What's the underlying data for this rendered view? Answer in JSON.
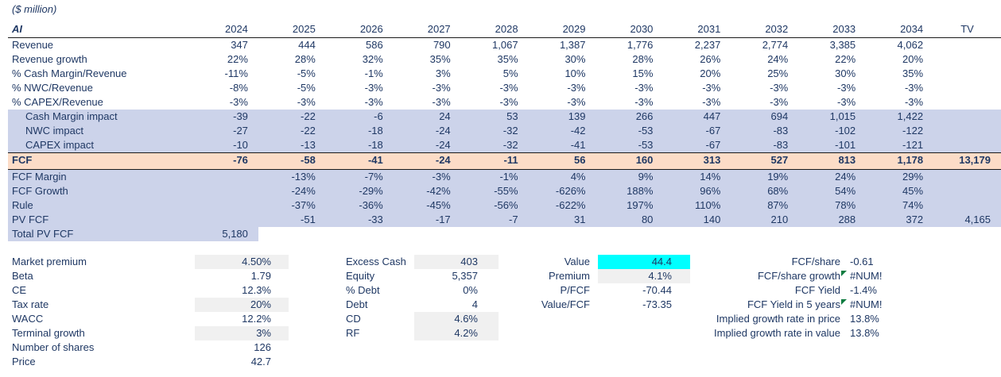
{
  "sheet": {
    "units_note": "($ million)",
    "company": "AI",
    "columns": [
      "2024",
      "2025",
      "2026",
      "2027",
      "2028",
      "2029",
      "2030",
      "2031",
      "2032",
      "2033",
      "2034",
      "TV"
    ],
    "rows": [
      {
        "label": "Revenue",
        "band": "none",
        "values": [
          "347",
          "444",
          "586",
          "790",
          "1,067",
          "1,387",
          "1,776",
          "2,237",
          "2,774",
          "3,385",
          "4,062",
          ""
        ]
      },
      {
        "label": "Revenue growth",
        "band": "none",
        "values": [
          "22%",
          "28%",
          "32%",
          "35%",
          "35%",
          "30%",
          "28%",
          "26%",
          "24%",
          "22%",
          "20%",
          ""
        ]
      },
      {
        "label": "% Cash Margin/Revenue",
        "band": "none",
        "values": [
          "-11%",
          "-5%",
          "-1%",
          "3%",
          "5%",
          "10%",
          "15%",
          "20%",
          "25%",
          "30%",
          "35%",
          ""
        ]
      },
      {
        "label": "% NWC/Revenue",
        "band": "none",
        "values": [
          "-8%",
          "-5%",
          "-3%",
          "-3%",
          "-3%",
          "-3%",
          "-3%",
          "-3%",
          "-3%",
          "-3%",
          "-3%",
          ""
        ]
      },
      {
        "label": "% CAPEX/Revenue",
        "band": "none",
        "values": [
          "-3%",
          "-3%",
          "-3%",
          "-3%",
          "-3%",
          "-3%",
          "-3%",
          "-3%",
          "-3%",
          "-3%",
          "-3%",
          ""
        ]
      },
      {
        "label": "Cash Margin impact",
        "band": "blue",
        "indent": true,
        "values": [
          "-39",
          "-22",
          "-6",
          "24",
          "53",
          "139",
          "266",
          "447",
          "694",
          "1,015",
          "1,422",
          ""
        ]
      },
      {
        "label": "NWC impact",
        "band": "blue",
        "indent": true,
        "values": [
          "-27",
          "-22",
          "-18",
          "-24",
          "-32",
          "-42",
          "-53",
          "-67",
          "-83",
          "-102",
          "-122",
          ""
        ]
      },
      {
        "label": "CAPEX impact",
        "band": "blue",
        "indent": true,
        "values": [
          "-10",
          "-13",
          "-18",
          "-24",
          "-32",
          "-41",
          "-53",
          "-67",
          "-83",
          "-101",
          "-121",
          ""
        ]
      },
      {
        "label": "FCF",
        "band": "orange",
        "bold": true,
        "values": [
          "-76",
          "-58",
          "-41",
          "-24",
          "-11",
          "56",
          "160",
          "313",
          "527",
          "813",
          "1,178",
          "13,179"
        ]
      },
      {
        "label": "FCF Margin",
        "band": "blue",
        "values": [
          "",
          "-13%",
          "-7%",
          "-3%",
          "-1%",
          "4%",
          "9%",
          "14%",
          "19%",
          "24%",
          "29%",
          ""
        ]
      },
      {
        "label": "FCF Growth",
        "band": "blue",
        "values": [
          "",
          "-24%",
          "-29%",
          "-42%",
          "-55%",
          "-626%",
          "188%",
          "96%",
          "68%",
          "54%",
          "45%",
          ""
        ]
      },
      {
        "label": "Rule",
        "band": "blue",
        "values": [
          "",
          "-37%",
          "-36%",
          "-45%",
          "-56%",
          "-622%",
          "197%",
          "110%",
          "87%",
          "78%",
          "74%",
          ""
        ]
      },
      {
        "label": "PV FCF",
        "band": "blue",
        "values": [
          "",
          "-51",
          "-33",
          "-17",
          "-7",
          "31",
          "80",
          "140",
          "210",
          "288",
          "372",
          "4,165"
        ]
      },
      {
        "label": "Total PV FCF",
        "band": "partial",
        "values": [
          "5,180",
          "",
          "",
          "",
          "",
          "",
          "",
          "",
          "",
          "",
          "",
          ""
        ]
      }
    ]
  },
  "assumptions": {
    "rows": [
      {
        "label": "Market premium",
        "value": "4.50%",
        "fill": "gray"
      },
      {
        "label": "Beta",
        "value": "1.79"
      },
      {
        "label": "CE",
        "value": "12.3%"
      },
      {
        "label": "Tax rate",
        "value": "20%",
        "fill": "gray"
      },
      {
        "label": "WACC",
        "value": "12.2%"
      },
      {
        "label": "Terminal growth",
        "value": "3%",
        "fill": "gray"
      },
      {
        "label": "Number of shares",
        "value": "126"
      },
      {
        "label": "Price",
        "value": "42.7"
      }
    ]
  },
  "capital_structure": {
    "rows": [
      {
        "label": "Excess Cash",
        "value": "403",
        "fill": "gray"
      },
      {
        "label": "Equity",
        "value": "5,357"
      },
      {
        "label": "% Debt",
        "value": "0%"
      },
      {
        "label": "Debt",
        "value": "4"
      },
      {
        "label": "CD",
        "value": "4.6%",
        "fill": "gray"
      },
      {
        "label": "RF",
        "value": "4.2%",
        "fill": "gray"
      }
    ]
  },
  "valuation": {
    "rows": [
      {
        "label": "Value",
        "value": "44.4",
        "fill": "cyan"
      },
      {
        "label": "Premium",
        "value": "4.1%",
        "fill": "gray"
      },
      {
        "label": "P/FCF",
        "value": "-70.44"
      },
      {
        "label": "Value/FCF",
        "value": "-73.35"
      }
    ]
  },
  "metrics": {
    "rows": [
      {
        "label": "FCF/share",
        "value": "-0.61"
      },
      {
        "label": "FCF/share growth",
        "value": "#NUM!",
        "error": true
      },
      {
        "label": "FCF Yield",
        "value": "-1.4%"
      },
      {
        "label": "FCF Yield in 5 years",
        "value": "#NUM!",
        "error": true
      },
      {
        "label": "Implied growth rate in price",
        "value": "13.8%"
      },
      {
        "label": "Implied growth rate in value",
        "value": "13.8%"
      }
    ]
  },
  "colors": {
    "text_navy": "#1f3864",
    "band_blue": "#ccd3ea",
    "band_orange": "#fcdcc7",
    "highlight_cyan": "#00ffff",
    "input_gray": "#f0f0f0",
    "error_indicator_green": "#107c41",
    "border_black": "#1a1a1a"
  }
}
